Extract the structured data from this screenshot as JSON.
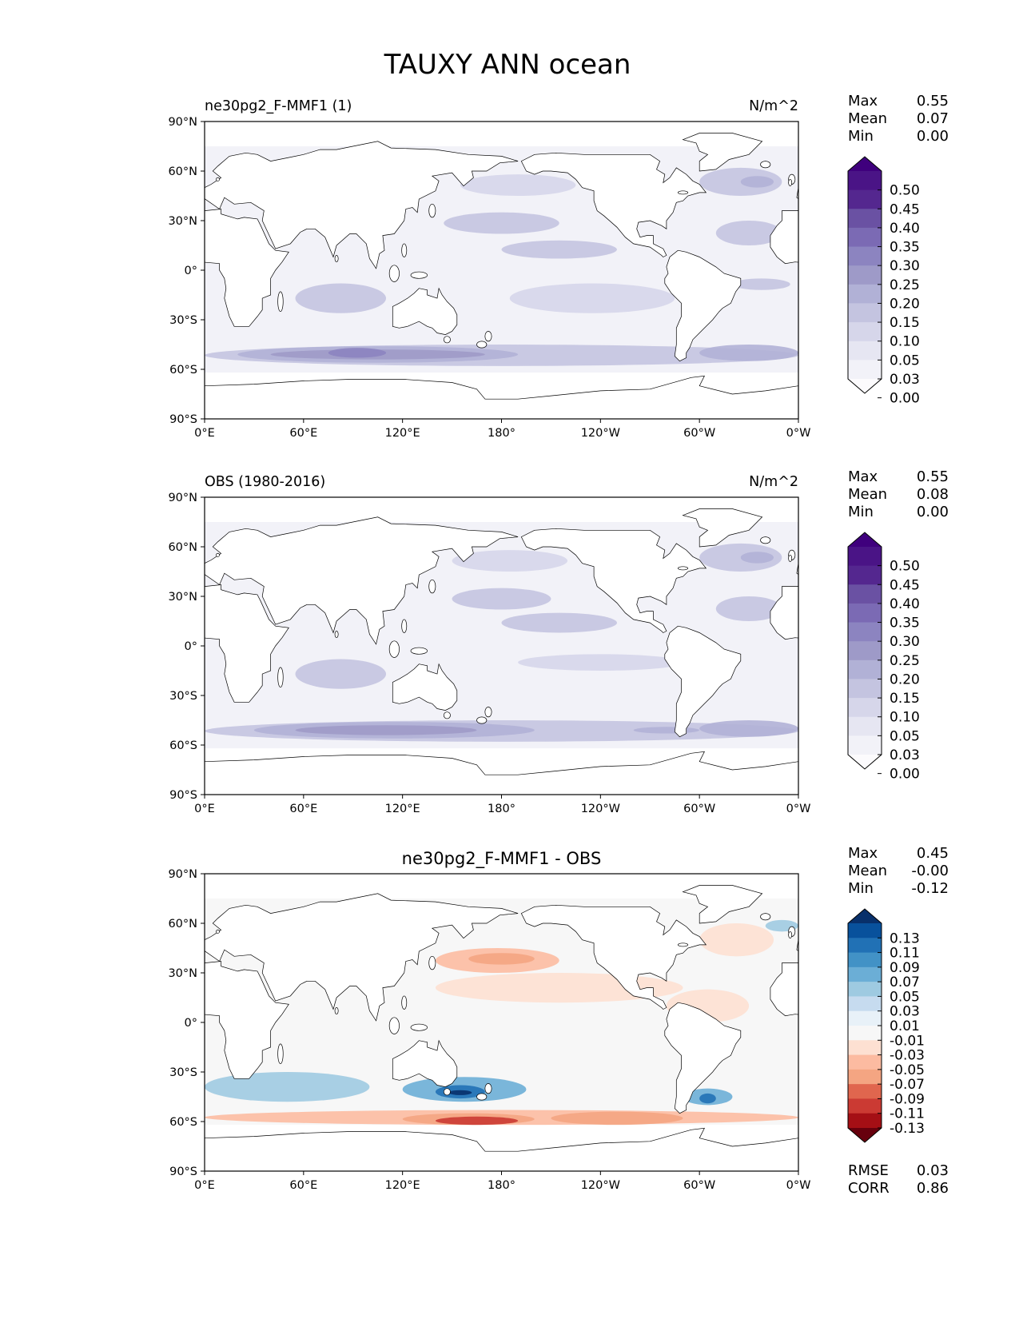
{
  "title": "TAUXY ANN ocean",
  "y_ticks": [
    "90°N",
    "60°N",
    "30°N",
    "0°",
    "30°S",
    "60°S",
    "90°S"
  ],
  "x_ticks": [
    "0°E",
    "60°E",
    "120°E",
    "180°",
    "120°W",
    "60°W",
    "0°W"
  ],
  "chart_data": [
    {
      "type": "heatmap",
      "title": "ne30pg2_F-MMF1 (1)",
      "units": "N/m^2",
      "stats": [
        {
          "label": "Max",
          "value": "0.55"
        },
        {
          "label": "Mean",
          "value": "0.07"
        },
        {
          "label": "Min",
          "value": "0.00"
        }
      ],
      "colorbar_levels": [
        "0.50",
        "0.45",
        "0.40",
        "0.35",
        "0.30",
        "0.25",
        "0.20",
        "0.15",
        "0.10",
        "0.05",
        "0.03",
        "0.00"
      ],
      "colorbar_colors": [
        "#3f007d",
        "#4a1486",
        "#54278f",
        "#6a51a3",
        "#7b6ab4",
        "#8c84c0",
        "#9e9ac8",
        "#b1b1d6",
        "#c4c4e0",
        "#d6d6ea",
        "#e6e6f2",
        "#f2f2f8",
        "#fcfbfd"
      ],
      "xlim": [
        0,
        360
      ],
      "ylim": [
        -90,
        90
      ]
    },
    {
      "type": "heatmap",
      "title": "OBS (1980-2016)",
      "units": "N/m^2",
      "stats": [
        {
          "label": "Max",
          "value": "0.55"
        },
        {
          "label": "Mean",
          "value": "0.08"
        },
        {
          "label": "Min",
          "value": "0.00"
        }
      ],
      "colorbar_levels": [
        "0.50",
        "0.45",
        "0.40",
        "0.35",
        "0.30",
        "0.25",
        "0.20",
        "0.15",
        "0.10",
        "0.05",
        "0.03",
        "0.00"
      ],
      "colorbar_colors": [
        "#3f007d",
        "#4a1486",
        "#54278f",
        "#6a51a3",
        "#7b6ab4",
        "#8c84c0",
        "#9e9ac8",
        "#b1b1d6",
        "#c4c4e0",
        "#d6d6ea",
        "#e6e6f2",
        "#f2f2f8",
        "#fcfbfd"
      ],
      "xlim": [
        0,
        360
      ],
      "ylim": [
        -90,
        90
      ]
    },
    {
      "type": "heatmap",
      "title": "ne30pg2_F-MMF1 - OBS",
      "units": "",
      "stats": [
        {
          "label": "Max",
          "value": "0.45"
        },
        {
          "label": "Mean",
          "value": "-0.00"
        },
        {
          "label": "Min",
          "value": "-0.12"
        }
      ],
      "colorbar_levels": [
        "0.13",
        "0.11",
        "0.09",
        "0.07",
        "0.05",
        "0.03",
        "0.01",
        "-0.01",
        "-0.03",
        "-0.05",
        "-0.07",
        "-0.09",
        "-0.11",
        "-0.13"
      ],
      "colorbar_colors": [
        "#08306b",
        "#08519c",
        "#2171b5",
        "#4292c6",
        "#6baed6",
        "#9ecae1",
        "#c6dbef",
        "#e8f1f8",
        "#f7f7f7",
        "#fde0d2",
        "#fcbba1",
        "#f4a582",
        "#e0664e",
        "#cb3a33",
        "#a50f15",
        "#67000d"
      ],
      "metrics": [
        {
          "label": "RMSE",
          "value": "0.03"
        },
        {
          "label": "CORR",
          "value": "0.86"
        }
      ],
      "xlim": [
        0,
        360
      ],
      "ylim": [
        -90,
        90
      ]
    }
  ]
}
